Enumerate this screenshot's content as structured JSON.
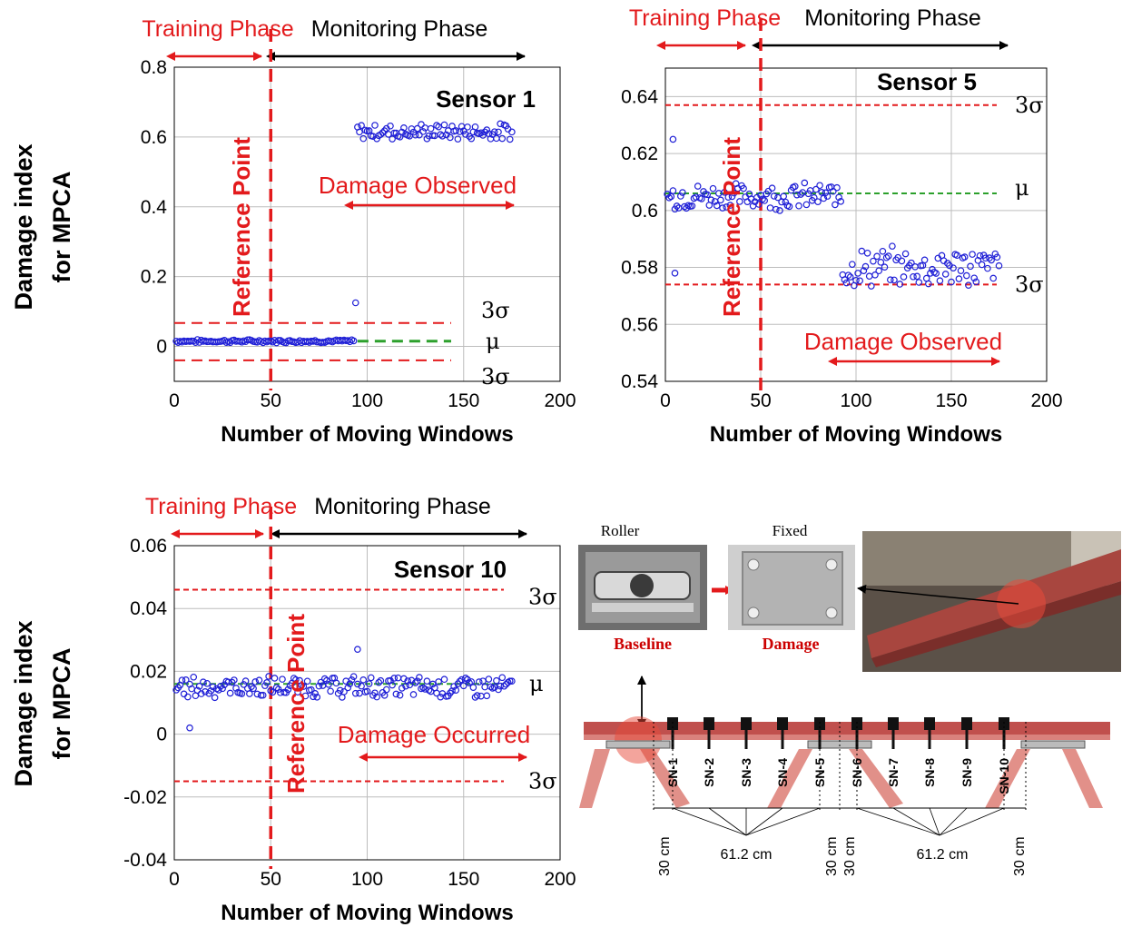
{
  "chart_data": [
    {
      "type": "scatter",
      "panel_title": "Sensor 1",
      "xlabel": "Number of Moving Windows",
      "ylabel": [
        "Damage index",
        "for MPCA"
      ],
      "xlim": [
        0,
        200
      ],
      "ylim": [
        -0.1,
        0.8
      ],
      "xticks": [
        0,
        50,
        100,
        150,
        200
      ],
      "yticks": [
        0,
        0.2,
        0.4,
        0.6,
        0.8
      ],
      "ytick_labels": [
        "0",
        "0.2",
        "0.4",
        "0.6",
        "0.8"
      ],
      "grid": true,
      "reference_x": 50,
      "phase_labels": {
        "training": "Training Phase",
        "monitoring": "Monitoring Phase"
      },
      "reference_label": "Reference Point",
      "damage_label": "Damage Observed",
      "mean": {
        "value": 0.015,
        "label": "μ"
      },
      "upper_limit": {
        "value": 0.067,
        "label": "3σ"
      },
      "lower_limit": {
        "value": -0.04,
        "label": "3σ"
      },
      "series": [
        {
          "segment": "training and early monitoring",
          "x_range": [
            1,
            93
          ],
          "baseline": 0.015,
          "spread": 0.004
        },
        {
          "segment": "outlier",
          "x": [
            94
          ],
          "y": [
            0.125
          ]
        },
        {
          "segment": "damaged",
          "x_range": [
            95,
            175
          ],
          "baseline": 0.615,
          "spread": 0.02
        }
      ]
    },
    {
      "type": "scatter",
      "panel_title": "Sensor 5",
      "xlabel": "Number of Moving Windows",
      "ylabel": [],
      "xlim": [
        0,
        200
      ],
      "ylim": [
        0.54,
        0.65
      ],
      "xticks": [
        0,
        50,
        100,
        150,
        200
      ],
      "yticks": [
        0.54,
        0.56,
        0.58,
        0.6,
        0.62,
        0.64
      ],
      "ytick_labels": [
        "0.54",
        "0.56",
        "0.58",
        "0.6",
        "0.62",
        "0.64"
      ],
      "grid": true,
      "reference_x": 50,
      "phase_labels": {
        "training": "Training Phase",
        "monitoring": "Monitoring Phase"
      },
      "reference_label": "Reference Point",
      "damage_label": "Damage Observed",
      "mean": {
        "value": 0.606,
        "label": "μ"
      },
      "upper_limit": {
        "value": 0.637,
        "label": "3σ"
      },
      "lower_limit": {
        "value": 0.574,
        "label": "3σ"
      },
      "series": [
        {
          "segment": "healthy",
          "x_range": [
            1,
            92
          ],
          "baseline": 0.605,
          "spread": 0.004
        },
        {
          "segment": "outliers",
          "x": [
            4,
            5
          ],
          "y": [
            0.625,
            0.578
          ]
        },
        {
          "segment": "damaged",
          "x_range": [
            93,
            175
          ],
          "baseline": 0.58,
          "spread": 0.006
        }
      ]
    },
    {
      "type": "scatter",
      "panel_title": "Sensor 10",
      "xlabel": "Number of Moving Windows",
      "ylabel": [
        "Damage index",
        "for MPCA"
      ],
      "xlim": [
        0,
        200
      ],
      "ylim": [
        -0.04,
        0.06
      ],
      "xticks": [
        0,
        50,
        100,
        150,
        200
      ],
      "yticks": [
        -0.04,
        -0.02,
        0,
        0.02,
        0.04,
        0.06
      ],
      "ytick_labels": [
        "-0.04",
        "-0.02",
        "0",
        "0.02",
        "0.04",
        "0.06"
      ],
      "grid": true,
      "reference_x": 50,
      "phase_labels": {
        "training": "Training Phase",
        "monitoring": "Monitoring Phase"
      },
      "reference_label": "Reference Point",
      "damage_label": "Damage Occurred",
      "mean": {
        "value": 0.016,
        "label": "μ"
      },
      "upper_limit": {
        "value": 0.046,
        "label": "3σ"
      },
      "lower_limit": {
        "value": -0.015,
        "label": "3σ"
      },
      "series": [
        {
          "segment": "all windows",
          "x_range": [
            1,
            175
          ],
          "baseline": 0.015,
          "spread": 0.003
        },
        {
          "segment": "outliers",
          "x": [
            8,
            95
          ],
          "y": [
            0.002,
            0.027
          ]
        }
      ]
    }
  ],
  "photo": {
    "roller_label": "Roller",
    "fixed_label": "Fixed",
    "baseline_label": "Baseline",
    "damage_label": "Damage"
  },
  "sensor_layout": {
    "sensors": [
      "SN-1",
      "SN-2",
      "SN-3",
      "SN-4",
      "SN-5",
      "SN-6",
      "SN-7",
      "SN-8",
      "SN-9",
      "SN-10"
    ],
    "dims": [
      "30 cm",
      "61.2 cm",
      "30 cm",
      "30 cm",
      "61.2 cm",
      "30 cm"
    ]
  },
  "colors": {
    "marker": "#1f1fd6",
    "limit": "#e31a1c",
    "mean": "#2ca02c",
    "frame_red": "#c0504d"
  }
}
